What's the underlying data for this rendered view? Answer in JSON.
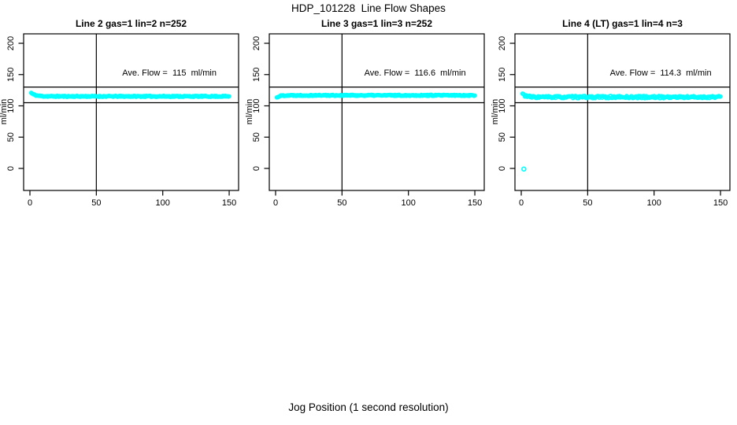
{
  "figure": {
    "title": "HDP_101228  Line Flow Shapes",
    "xlabel": "Jog Position (1 second resolution)"
  },
  "chart_data": {
    "type": "scatter",
    "title": "HDP_101228  Line Flow Shapes",
    "xlabel": "Jog Position (1 second resolution)",
    "ylabel": "ml/min",
    "x_ticks": [
      0,
      50,
      100,
      150
    ],
    "y_ticks": [
      0,
      50,
      100,
      150,
      200
    ],
    "xlim": [
      -5,
      157
    ],
    "ylim": [
      -35,
      215
    ],
    "grid": false,
    "point_color": "#00ffff",
    "axis_color": "#000000",
    "ref_line_upper": 130,
    "ref_line_lower": 105,
    "vline_x": 50,
    "panels": [
      {
        "title": "Line 2 gas=1 lin=2 n=252",
        "ave_flow_label": "Ave. Flow =  115  ml/min",
        "ave_flow": 115,
        "n": 252,
        "band": {
          "start": 123,
          "settle": 115.2,
          "tau": 3,
          "noise": 0.9,
          "points": 252,
          "x_start": 1,
          "x_end": 150,
          "seed": 11
        },
        "outliers": []
      },
      {
        "title": "Line 3 gas=1 lin=3 n=252",
        "ave_flow_label": "Ave. Flow =  116.6  ml/min",
        "ave_flow": 116.6,
        "n": 252,
        "band": {
          "start": 111,
          "settle": 116.8,
          "tau": 2,
          "noise": 0.9,
          "points": 252,
          "x_start": 1,
          "x_end": 150,
          "seed": 22
        },
        "outliers": []
      },
      {
        "title": "Line 4 (LT) gas=1 lin=4 n=3",
        "ave_flow_label": "Ave. Flow =  114.3  ml/min",
        "ave_flow": 114.3,
        "n": 3,
        "band": {
          "start": 122,
          "settle": 114,
          "tau": 2.5,
          "noise": 1.8,
          "points": 252,
          "x_start": 1,
          "x_end": 150,
          "seed": 33
        },
        "outliers": [
          [
            2,
            -1
          ]
        ]
      }
    ]
  }
}
